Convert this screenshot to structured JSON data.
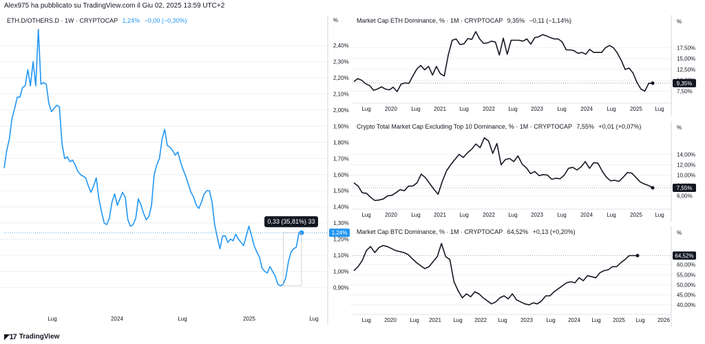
{
  "header": {
    "published_text": "Alex975 ha pubblicato su TradingView.com il Giu 02, 2025 13:59 UTC+2"
  },
  "footer": {
    "brand": "TradingView"
  },
  "colors": {
    "accent": "#2196f3",
    "line": "#131722",
    "grid": "#eef0f3",
    "badge_dark": "#131722"
  },
  "chart_data": [
    {
      "type": "line",
      "title": "ETH.D/OTHERS.D · 1W · CRYPTOCAP",
      "last_value_label": "1,24%",
      "change_label": "−0,00 (−0,30%)",
      "unit_label": "%",
      "y_ticks": [
        "2,40%",
        "2,30%",
        "2,20%",
        "2,10%",
        "2,00%",
        "1,90%",
        "1,80%",
        "1,70%",
        "1,60%",
        "1,50%",
        "1,40%",
        "1,30%",
        "1,20%",
        "1,10%",
        "1,00%",
        "0,90%"
      ],
      "x_ticks": [
        "Lug",
        "2024",
        "Lug",
        "2025",
        "Lug"
      ],
      "ylim": [
        0.84,
        2.52
      ],
      "last_badge": "1,24%",
      "measure_label": "0,33 (35,81%) 33",
      "y": [
        1.64,
        1.75,
        1.82,
        1.95,
        2.01,
        2.08,
        2.08,
        2.14,
        2.15,
        2.25,
        2.15,
        2.3,
        2.15,
        2.5,
        2.16,
        2.17,
        2.16,
        2.04,
        1.99,
        2.01,
        2.03,
        2.02,
        1.79,
        1.7,
        1.71,
        1.68,
        1.69,
        1.66,
        1.62,
        1.6,
        1.59,
        1.58,
        1.53,
        1.49,
        1.53,
        1.58,
        1.45,
        1.37,
        1.3,
        1.29,
        1.33,
        1.43,
        1.48,
        1.41,
        1.45,
        1.49,
        1.46,
        1.32,
        1.28,
        1.29,
        1.33,
        1.45,
        1.41,
        1.36,
        1.32,
        1.34,
        1.41,
        1.6,
        1.66,
        1.7,
        1.82,
        1.88,
        1.78,
        1.77,
        1.75,
        1.72,
        1.74,
        1.68,
        1.63,
        1.59,
        1.54,
        1.49,
        1.46,
        1.41,
        1.39,
        1.43,
        1.48,
        1.5,
        1.5,
        1.43,
        1.29,
        1.21,
        1.14,
        1.22,
        1.22,
        1.18,
        1.2,
        1.19,
        1.23,
        1.2,
        1.18,
        1.16,
        1.22,
        1.28,
        1.22,
        1.16,
        1.12,
        1.09,
        1.02,
        1.0,
        0.99,
        1.03,
        1.0,
        0.97,
        0.92,
        0.91,
        0.92,
        0.96,
        1.06,
        1.12,
        1.14,
        1.15,
        1.24,
        1.24
      ]
    },
    {
      "type": "line",
      "title": "Market Cap ETH Dominance, % · 1M · CRYPTOCAP",
      "last_value_label": "9,35%",
      "change_label": "−0,11 (−1,14%)",
      "unit_label": "%",
      "y_ticks": [
        "17,50%",
        "15,00%",
        "12,50%",
        "10,00%",
        "7,50%"
      ],
      "x_ticks": [
        "Lug",
        "2020",
        "Lug",
        "2021",
        "Lug",
        "2022",
        "Lug",
        "2023",
        "Lug",
        "2024",
        "Lug",
        "2025",
        "Lug"
      ],
      "ylim": [
        6.0,
        21.5
      ],
      "last_badge": "9,35%",
      "y": [
        9.7,
        10.4,
        10.0,
        9.2,
        8.8,
        7.7,
        8.0,
        8.5,
        8.0,
        7.8,
        8.4,
        7.4,
        9.1,
        9.4,
        9.3,
        11.0,
        12.6,
        13.4,
        12.4,
        13.2,
        11.2,
        13.2,
        11.5,
        11.0,
        15.8,
        19.2,
        19.5,
        18.2,
        18.4,
        19.6,
        19.4,
        21.2,
        19.5,
        18.5,
        18.6,
        19.0,
        18.8,
        15.8,
        19.7,
        16.0,
        19.2,
        19.2,
        19.2,
        19.0,
        19.5,
        18.3,
        19.8,
        20.0,
        20.5,
        20.2,
        19.8,
        19.5,
        19.5,
        18.8,
        17.0,
        17.0,
        16.8,
        16.2,
        16.4,
        16.0,
        17.1,
        16.4,
        16.4,
        16.4,
        17.5,
        18.0,
        17.5,
        16.3,
        14.6,
        12.5,
        12.8,
        11.7,
        9.5,
        8.0,
        7.5,
        9.3,
        9.35
      ]
    },
    {
      "type": "line",
      "title": "Crypto Total Market Cap Excluding Top 10 Dominance, % · 1M · CRYPTOCAP",
      "last_value_label": "7,55%",
      "change_label": "+0,01 (+0,07%)",
      "unit_label": "%",
      "y_ticks": [
        "14,00%",
        "12,00%",
        "10,00%",
        "8,00%",
        "6,00%"
      ],
      "x_ticks": [
        "Lug",
        "2020",
        "Lug",
        "2021",
        "Lug",
        "2022",
        "Lug",
        "2023",
        "Lug",
        "2024",
        "Lug",
        "2025",
        "Lug"
      ],
      "ylim": [
        4.5,
        17.5
      ],
      "last_badge": "7,55%",
      "y": [
        8.5,
        7.9,
        6.6,
        6.5,
        5.7,
        5.1,
        5.2,
        5.4,
        6.0,
        6.1,
        6.6,
        7.2,
        7.0,
        7.9,
        7.9,
        8.5,
        10.2,
        9.5,
        8.4,
        7.3,
        6.3,
        8.8,
        10.8,
        12.0,
        13.0,
        14.0,
        13.4,
        14.3,
        15.0,
        16.0,
        15.3,
        17.2,
        16.6,
        14.2,
        16.1,
        12.0,
        13.0,
        13.2,
        12.6,
        13.7,
        12.1,
        11.4,
        10.3,
        10.7,
        9.9,
        10.1,
        10.0,
        9.2,
        9.4,
        9.3,
        10.0,
        11.3,
        11.5,
        11.0,
        11.6,
        12.6,
        11.3,
        12.4,
        12.3,
        10.8,
        9.6,
        8.9,
        9.0,
        8.8,
        9.6,
        10.5,
        10.4,
        9.6,
        8.7,
        8.3,
        8.0,
        7.55
      ]
    },
    {
      "type": "line",
      "title": "Market Cap BTC Dominance, % · 1M · CRYPTOCAP",
      "last_value_label": "64,52%",
      "change_label": "+0,13 (+0,20%)",
      "unit_label": "%",
      "y_ticks": [
        "60,00%",
        "55,00%",
        "50,00%",
        "45,00%",
        "40,00%"
      ],
      "x_ticks": [
        "Lug",
        "2020",
        "Lug",
        "2021",
        "Lug",
        "2022",
        "Lug",
        "2023",
        "Lug",
        "2024",
        "Lug",
        "2025",
        "Lug",
        "2026"
      ],
      "ylim": [
        38.0,
        71.5
      ],
      "last_badge": "64,52%",
      "y": [
        57.0,
        59.0,
        62.0,
        67.0,
        69.0,
        66.0,
        68.5,
        69.5,
        69.0,
        68.0,
        67.0,
        66.5,
        66.0,
        65.0,
        63.0,
        61.0,
        59.5,
        58.0,
        59.0,
        61.5,
        64.0,
        70.5,
        64.0,
        62.5,
        51.5,
        47.0,
        43.5,
        45.5,
        44.0,
        46.5,
        45.5,
        43.5,
        42.0,
        40.5,
        41.5,
        43.5,
        44.5,
        43.0,
        45.5,
        42.5,
        41.5,
        40.5,
        40.0,
        41.0,
        40.5,
        42.0,
        44.5,
        44.5,
        46.5,
        48.0,
        49.5,
        51.0,
        51.5,
        51.0,
        53.5,
        52.0,
        54.5,
        54.0,
        53.5,
        56.0,
        57.0,
        57.5,
        59.0,
        59.0,
        61.0,
        62.5,
        64.5,
        64.5,
        64.5
      ]
    }
  ]
}
